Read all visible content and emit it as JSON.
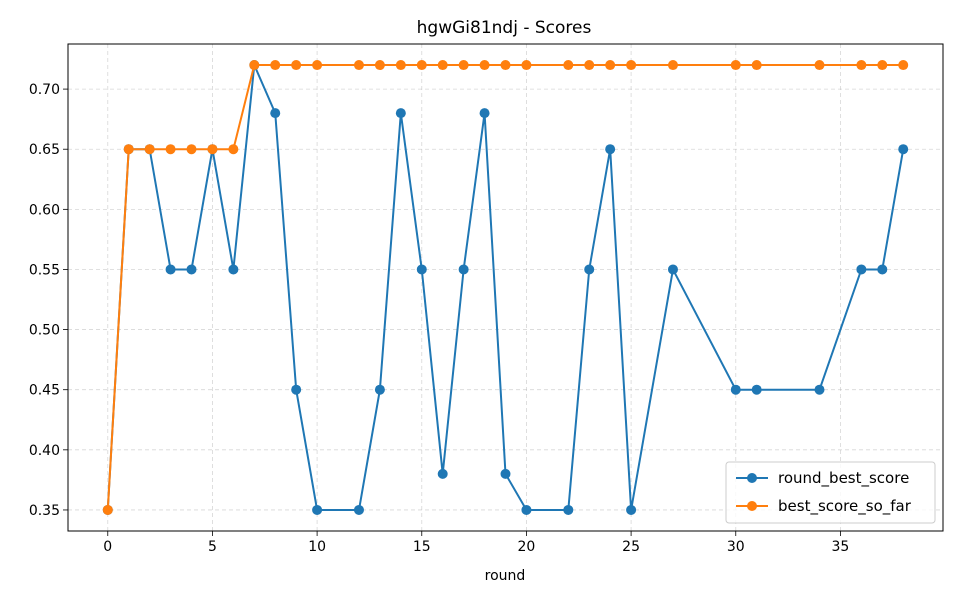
{
  "chart_data": {
    "type": "line",
    "title": "hgwGi81ndj - Scores",
    "xlabel": "round",
    "ylabel": "",
    "xlim": [
      -1.9,
      39.9
    ],
    "ylim": [
      0.3325,
      0.7375
    ],
    "xticks": [
      0,
      5,
      10,
      15,
      20,
      25,
      30,
      35
    ],
    "yticks": [
      0.35,
      0.4,
      0.45,
      0.5,
      0.55,
      0.6,
      0.65,
      0.7
    ],
    "xtick_labels": [
      "0",
      "5",
      "10",
      "15",
      "20",
      "25",
      "30",
      "35"
    ],
    "ytick_labels": [
      "0.35",
      "0.40",
      "0.45",
      "0.50",
      "0.55",
      "0.60",
      "0.65",
      "0.70"
    ],
    "grid": true,
    "legend_position": "bottom-right",
    "series": [
      {
        "name": "round_best_score",
        "color": "#1f77b4",
        "x": [
          0,
          1,
          2,
          3,
          4,
          5,
          6,
          7,
          8,
          9,
          10,
          12,
          13,
          14,
          15,
          16,
          17,
          18,
          19,
          20,
          22,
          23,
          24,
          25,
          27,
          30,
          31,
          34,
          36,
          37,
          38
        ],
        "y": [
          0.35,
          0.65,
          0.65,
          0.55,
          0.55,
          0.65,
          0.55,
          0.72,
          0.68,
          0.45,
          0.35,
          0.35,
          0.45,
          0.68,
          0.55,
          0.38,
          0.55,
          0.68,
          0.38,
          0.35,
          0.35,
          0.55,
          0.65,
          0.35,
          0.55,
          0.45,
          0.45,
          0.45,
          0.55,
          0.55,
          0.65
        ]
      },
      {
        "name": "best_score_so_far",
        "color": "#ff7f0e",
        "x": [
          0,
          1,
          2,
          3,
          4,
          5,
          6,
          7,
          8,
          9,
          10,
          12,
          13,
          14,
          15,
          16,
          17,
          18,
          19,
          20,
          22,
          23,
          24,
          25,
          27,
          30,
          31,
          34,
          36,
          37,
          38
        ],
        "y": [
          0.35,
          0.65,
          0.65,
          0.65,
          0.65,
          0.65,
          0.65,
          0.72,
          0.72,
          0.72,
          0.72,
          0.72,
          0.72,
          0.72,
          0.72,
          0.72,
          0.72,
          0.72,
          0.72,
          0.72,
          0.72,
          0.72,
          0.72,
          0.72,
          0.72,
          0.72,
          0.72,
          0.72,
          0.72,
          0.72,
          0.72
        ]
      }
    ]
  }
}
